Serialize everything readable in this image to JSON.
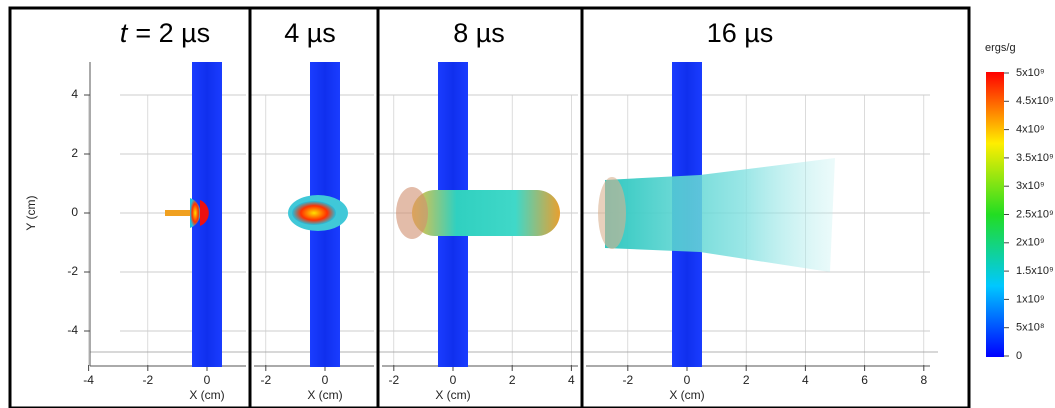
{
  "panels": [
    {
      "title_var": "t",
      "title": "= 2 µs",
      "xticks": [
        -4,
        -2,
        0
      ],
      "x_label": "X (cm)"
    },
    {
      "title": "4 µs",
      "xticks": [
        -2,
        0
      ],
      "x_label": "X (cm)"
    },
    {
      "title": "8 µs",
      "xticks": [
        -2,
        0,
        2,
        4
      ],
      "x_label": "X (cm)"
    },
    {
      "title": "16 µs",
      "xticks": [
        -2,
        0,
        2,
        4,
        6,
        8
      ],
      "x_label": "X (cm)"
    }
  ],
  "y_label": "Y (cm)",
  "yticks": [
    4,
    2,
    0,
    -2,
    -4
  ],
  "colorbar": {
    "title": "ergs/g",
    "labels": [
      "5x10⁹",
      "4.5x10⁹",
      "4x10⁹",
      "3.5x10⁹",
      "3x10⁹",
      "2.5x10⁹",
      "2x10⁹",
      "1.5x10⁹",
      "1x10⁹",
      "5x10⁸",
      "0"
    ]
  }
}
